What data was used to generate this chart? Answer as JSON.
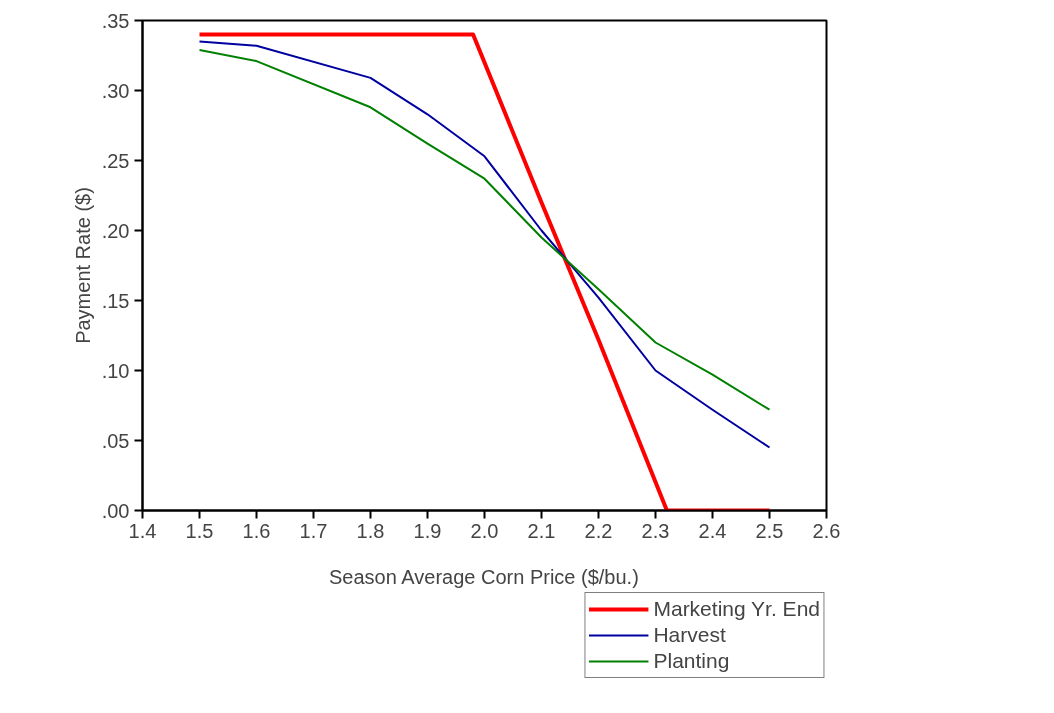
{
  "chart_data": {
    "type": "line",
    "xlabel": "Season Average Corn Price ($/bu.)",
    "ylabel": "Payment Rate ($)",
    "xlim": [
      1.4,
      2.6
    ],
    "xticks": [
      {
        "value": 1.4,
        "label": "1.4"
      },
      {
        "value": 1.5,
        "label": "1.5"
      },
      {
        "value": 1.6,
        "label": "1.6"
      },
      {
        "value": 1.7,
        "label": "1.7"
      },
      {
        "value": 1.8,
        "label": "1.8"
      },
      {
        "value": 1.9,
        "label": "1.9"
      },
      {
        "value": 2.0,
        "label": "2.0"
      },
      {
        "value": 2.1,
        "label": "2.1"
      },
      {
        "value": 2.2,
        "label": "2.2"
      },
      {
        "value": 2.3,
        "label": "2.3"
      },
      {
        "value": 2.4,
        "label": "2.4"
      },
      {
        "value": 2.5,
        "label": "2.5"
      },
      {
        "value": 2.6,
        "label": "2.6"
      }
    ],
    "ylim": [
      0,
      0.35
    ],
    "yticks": [
      {
        "value": 0,
        "label": ".00"
      },
      {
        "value": 0.05,
        "label": ".05"
      },
      {
        "value": 0.1,
        "label": ".10"
      },
      {
        "value": 0.15,
        "label": ".15"
      },
      {
        "value": 0.2,
        "label": ".20"
      },
      {
        "value": 0.25,
        "label": ".25"
      },
      {
        "value": 0.3,
        "label": ".30"
      },
      {
        "value": 0.35,
        "label": ".35"
      }
    ],
    "grid": false,
    "legend": "bottom right",
    "series": [
      {
        "name": "Marketing Yr. End",
        "color": "#ff0000",
        "x": [
          1.5,
          1.98,
          2.1,
          2.2,
          2.32,
          2.5
        ],
        "values": [
          0.34,
          0.34,
          0.22,
          0.122,
          0,
          0
        ]
      },
      {
        "name": "Harvest",
        "color": "#0000a0",
        "x": [
          1.5,
          1.6,
          1.8,
          1.9,
          2.0,
          2.1,
          2.2,
          2.3,
          2.4,
          2.5
        ],
        "values": [
          0.335,
          0.332,
          0.309,
          0.283,
          0.253,
          0.2,
          0.152,
          0.1,
          0.072,
          0.045
        ]
      },
      {
        "name": "Planting",
        "color": "#008000",
        "x": [
          1.5,
          1.6,
          1.8,
          1.9,
          2.0,
          2.1,
          2.2,
          2.3,
          2.4,
          2.5
        ],
        "values": [
          0.329,
          0.321,
          0.288,
          0.262,
          0.237,
          0.195,
          0.158,
          0.12,
          0.097,
          0.072
        ]
      }
    ]
  }
}
